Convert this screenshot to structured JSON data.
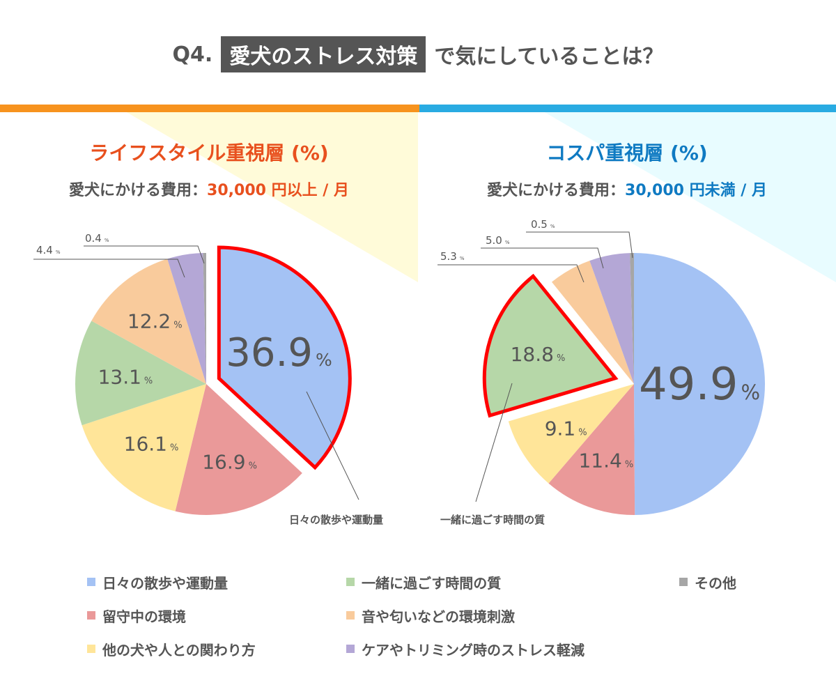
{
  "title": {
    "prefix": "Q4.",
    "highlight": "愛犬のストレス対策",
    "suffix": "で気にしていることは？"
  },
  "colors": {
    "orange_bar": "#f7931e",
    "blue_bar": "#29abe2",
    "left_accent": "#e8501e",
    "right_accent": "#0f7ac2",
    "highlight_border": "#ff0000",
    "bg_left": "#fffbd9",
    "bg_right": "#e8fcff"
  },
  "categories": [
    "日々の散歩や運動量",
    "留守中の環境",
    "他の犬や人との関わり方",
    "一緒に過ごす時間の質",
    "音や匂いなどの環境刺激",
    "ケアやトリミング時のストレス軽減",
    "その他"
  ],
  "category_colors": [
    "#a4c2f4",
    "#ea9999",
    "#ffe599",
    "#b6d7a8",
    "#f9cb9c",
    "#b4a7d6",
    "#a6a6a6"
  ],
  "legend": {
    "items": [
      {
        "label": "日々の散歩や運動量",
        "color": "#a4c2f4"
      },
      {
        "label": "一緒に過ごす時間の質",
        "color": "#b6d7a8"
      },
      {
        "label": "その他",
        "color": "#a6a6a6"
      },
      {
        "label": "留守中の環境",
        "color": "#ea9999"
      },
      {
        "label": "音や匂いなどの環境刺激",
        "color": "#f9cb9c"
      },
      {
        "label": "",
        "color": ""
      },
      {
        "label": "他の犬や人との関わり方",
        "color": "#ffe599"
      },
      {
        "label": "ケアやトリミング時のストレス軽減",
        "color": "#b4a7d6"
      }
    ]
  },
  "chart_data": [
    {
      "type": "pie",
      "title": "ライフスタイル重視層 (%)",
      "subtitle_prefix": "愛犬にかける費用：",
      "subtitle_value": "30,000 円以上 / 月",
      "categories": [
        "日々の散歩や運動量",
        "留守中の環境",
        "他の犬や人との関わり方",
        "一緒に過ごす時間の質",
        "音や匂いなどの環境刺激",
        "ケアやトリミング時のストレス軽減",
        "その他"
      ],
      "values": [
        36.9,
        16.9,
        16.1,
        13.1,
        12.2,
        4.4,
        0.4
      ],
      "unit": "%",
      "highlighted": "日々の散歩や運動量",
      "callout": "日々の散歩や運動量"
    },
    {
      "type": "pie",
      "title": "コスパ重視層 (%)",
      "subtitle_prefix": "愛犬にかける費用：",
      "subtitle_value": "30,000 円未満 / 月",
      "categories": [
        "日々の散歩や運動量",
        "留守中の環境",
        "他の犬や人との関わり方",
        "一緒に過ごす時間の質",
        "音や匂いなどの環境刺激",
        "ケアやトリミング時のストレス軽減",
        "その他"
      ],
      "values": [
        49.9,
        11.4,
        9.1,
        18.8,
        5.3,
        5.0,
        0.5
      ],
      "unit": "%",
      "highlighted": "一緒に過ごす時間の質",
      "callout": "一緒に過ごす時間の質"
    }
  ]
}
